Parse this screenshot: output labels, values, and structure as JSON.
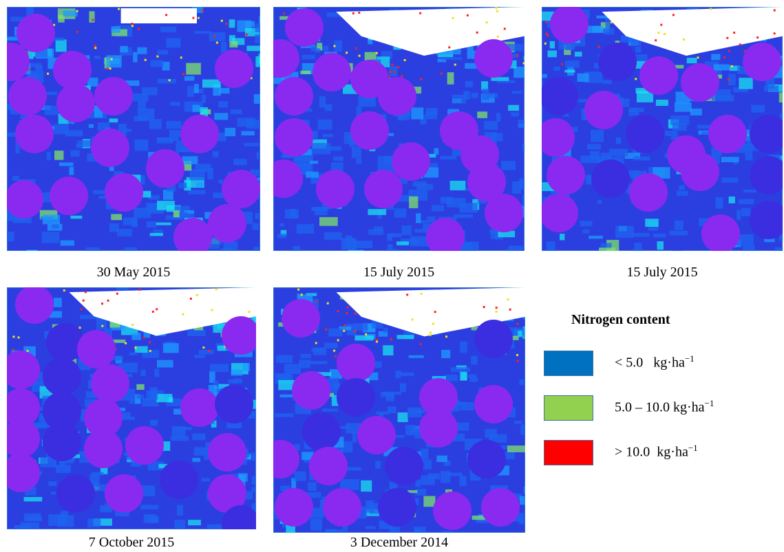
{
  "panels": [
    {
      "caption": "30 May 2015"
    },
    {
      "caption": "15 July 2015"
    },
    {
      "caption": "15 July 2015"
    },
    {
      "caption": "7 October 2015"
    },
    {
      "caption": "3 December 2014"
    }
  ],
  "legend": {
    "title": "Nitrogen content",
    "items": [
      {
        "color": "#0070c0",
        "label": "< 5.0   kg·ha",
        "sup": "−1"
      },
      {
        "color": "#92d050",
        "label": "5.0 – 10.0 kg·ha",
        "sup": "−1"
      },
      {
        "color": "#ff0000",
        "label": "> 10.0  kg·ha",
        "sup": "−1"
      }
    ]
  }
}
